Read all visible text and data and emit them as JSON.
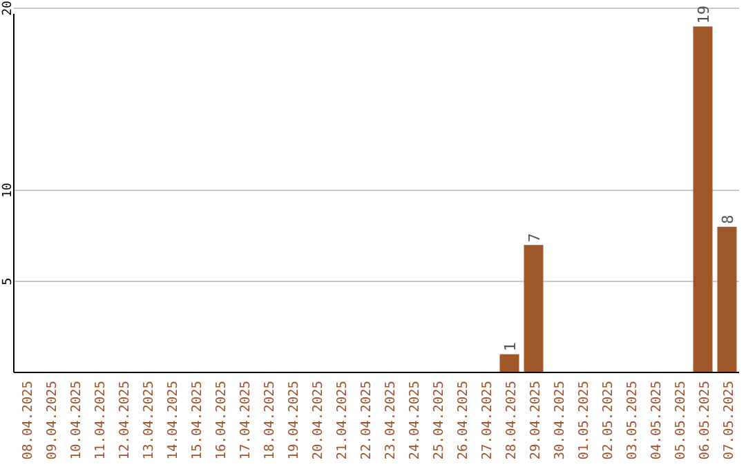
{
  "chart_data": {
    "type": "bar",
    "categories": [
      "08.04.2025",
      "09.04.2025",
      "10.04.2025",
      "11.04.2025",
      "12.04.2025",
      "13.04.2025",
      "14.04.2025",
      "15.04.2025",
      "16.04.2025",
      "17.04.2025",
      "18.04.2025",
      "19.04.2025",
      "20.04.2025",
      "21.04.2025",
      "22.04.2025",
      "23.04.2025",
      "24.04.2025",
      "25.04.2025",
      "26.04.2025",
      "27.04.2025",
      "28.04.2025",
      "29.04.2025",
      "30.04.2025",
      "01.05.2025",
      "02.05.2025",
      "03.05.2025",
      "04.05.2025",
      "05.05.2025",
      "06.05.2025",
      "07.05.2025"
    ],
    "values": [
      0,
      0,
      0,
      0,
      0,
      0,
      0,
      0,
      0,
      0,
      0,
      0,
      0,
      0,
      0,
      0,
      0,
      0,
      0,
      0,
      1,
      7,
      0,
      0,
      0,
      0,
      0,
      0,
      19,
      8
    ],
    "value_labels": [
      null,
      null,
      null,
      null,
      null,
      null,
      null,
      null,
      null,
      null,
      null,
      null,
      null,
      null,
      null,
      null,
      null,
      null,
      null,
      null,
      "1",
      "7",
      null,
      null,
      null,
      null,
      null,
      null,
      "19",
      "8"
    ],
    "color": "#a0582a",
    "ylim": [
      0,
      20
    ],
    "yticks": [
      5,
      10,
      20
    ],
    "grid": "y"
  }
}
